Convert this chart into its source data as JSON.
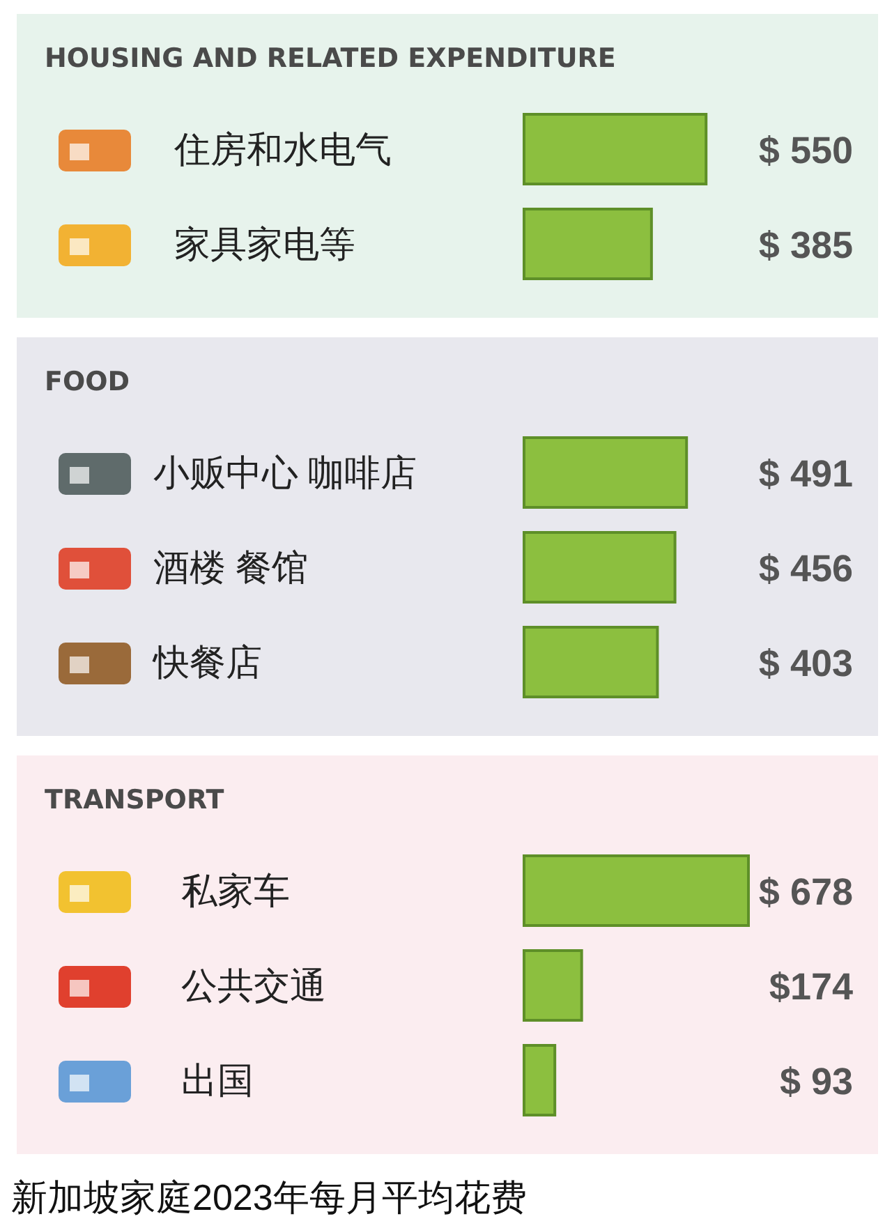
{
  "chart_data": [
    {
      "type": "bar",
      "orientation": "horizontal",
      "title": "HOUSING AND RELATED EXPENDITURE",
      "categories": [
        "住房和水电气",
        "家具家电等"
      ],
      "series": [
        {
          "color": "#8cbf3f",
          "values": [
            550,
            385
          ],
          "value_labels": [
            "$ 550",
            "$ 385"
          ]
        }
      ]
    },
    {
      "type": "bar",
      "orientation": "horizontal",
      "title": "FOOD",
      "categories": [
        "小贩中心 咖啡店",
        "酒楼 餐馆",
        "快餐店"
      ],
      "series": [
        {
          "color": "#8cbf3f",
          "values": [
            491,
            456,
            403
          ],
          "value_labels": [
            "$ 491",
            "$ 456",
            "$ 403"
          ]
        }
      ]
    },
    {
      "type": "bar",
      "orientation": "horizontal",
      "title": "TRANSPORT",
      "categories": [
        "私家车",
        "公共交通",
        "出国"
      ],
      "series": [
        {
          "color": "#8cbf3f",
          "values": [
            678,
            174,
            93
          ],
          "value_labels": [
            "$ 678",
            "$174",
            "$ 93"
          ]
        }
      ],
      "annotations": [
        "新加坡家庭2023年每月平均花费"
      ]
    }
  ]
}
